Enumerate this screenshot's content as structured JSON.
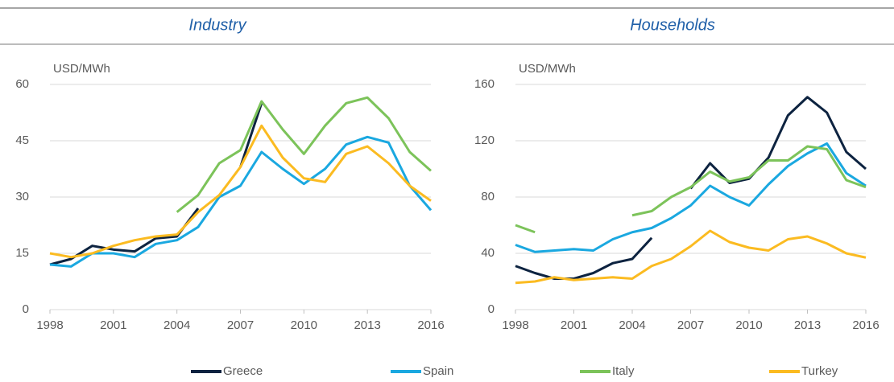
{
  "chart_data": [
    {
      "type": "line",
      "title": "Industry",
      "y_label": "USD/MWh",
      "x": [
        1998,
        1999,
        2000,
        2001,
        2002,
        2003,
        2004,
        2005,
        2006,
        2007,
        2008,
        2009,
        2010,
        2011,
        2012,
        2013,
        2014,
        2015,
        2016
      ],
      "xlim": [
        1998,
        2016
      ],
      "xticks": [
        1998,
        2001,
        2004,
        2007,
        2010,
        2013,
        2016
      ],
      "ylim": [
        0,
        60
      ],
      "yticks": [
        0,
        15,
        30,
        45,
        60
      ],
      "grid": true,
      "series": [
        {
          "name": "Greece",
          "color": "#0d2340",
          "values": [
            12,
            13.5,
            17,
            16,
            15.5,
            19,
            19.5,
            27,
            null,
            38,
            55,
            null,
            null,
            null,
            null,
            null,
            null,
            null,
            null
          ]
        },
        {
          "name": "Spain",
          "color": "#1aa8e0",
          "values": [
            12,
            11.5,
            15,
            15,
            14,
            17.5,
            18.5,
            22,
            30,
            33,
            42,
            37.5,
            33.5,
            37.5,
            44,
            46,
            44.5,
            33,
            26.5
          ]
        },
        {
          "name": "Italy",
          "color": "#7cc35a",
          "values": [
            null,
            null,
            null,
            null,
            null,
            null,
            26,
            30.5,
            39,
            42.5,
            55.5,
            48,
            41.5,
            49,
            55,
            56.5,
            51,
            42,
            37
          ]
        },
        {
          "name": "Turkey",
          "color": "#fbbb21",
          "values": [
            15,
            14,
            15,
            17,
            18.5,
            19.5,
            20,
            26,
            30.5,
            38,
            49,
            40.5,
            35,
            34,
            41.5,
            43.5,
            39,
            33,
            29
          ]
        }
      ]
    },
    {
      "type": "line",
      "title": "Households",
      "y_label": "USD/MWh",
      "x": [
        1998,
        1999,
        2000,
        2001,
        2002,
        2003,
        2004,
        2005,
        2006,
        2007,
        2008,
        2009,
        2010,
        2011,
        2012,
        2013,
        2014,
        2015,
        2016
      ],
      "xlim": [
        1998,
        2016
      ],
      "xticks": [
        1998,
        2001,
        2004,
        2007,
        2010,
        2013,
        2016
      ],
      "ylim": [
        0,
        160
      ],
      "yticks": [
        0,
        40,
        80,
        120,
        160
      ],
      "grid": true,
      "series": [
        {
          "name": "Greece",
          "color": "#0d2340",
          "values": [
            31,
            26,
            22,
            22,
            26,
            33,
            36,
            51,
            null,
            86,
            104,
            90,
            93,
            108,
            138,
            151,
            140,
            112,
            100
          ]
        },
        {
          "name": "Spain",
          "color": "#1aa8e0",
          "values": [
            46,
            41,
            42,
            43,
            42,
            50,
            55,
            58,
            65,
            74,
            88,
            80,
            74,
            89,
            102,
            111,
            118,
            97,
            88
          ]
        },
        {
          "name": "Italy",
          "color": "#7cc35a",
          "values": [
            60,
            55,
            null,
            null,
            null,
            null,
            67,
            70,
            80,
            87,
            98,
            91,
            94,
            106,
            106,
            116,
            114,
            92,
            87
          ]
        },
        {
          "name": "Turkey",
          "color": "#fbbb21",
          "values": [
            19,
            20,
            23,
            21,
            22,
            23,
            22,
            31,
            36,
            45,
            56,
            48,
            44,
            42,
            50,
            52,
            47,
            40,
            37
          ]
        }
      ]
    }
  ]
}
